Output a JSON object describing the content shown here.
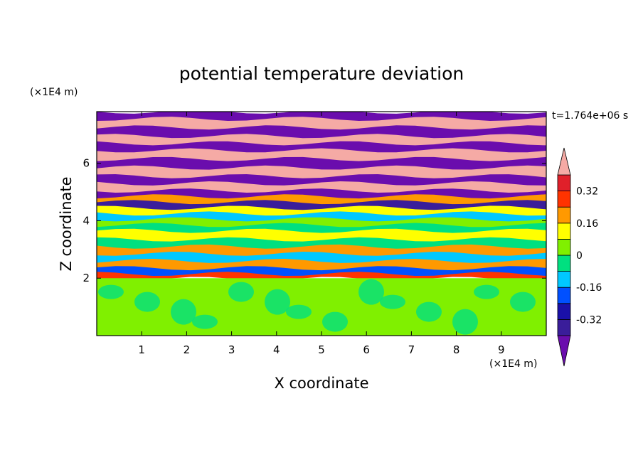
{
  "chart_data": {
    "type": "heatmap",
    "title": "potential temperature deviation",
    "xlabel": "X coordinate",
    "ylabel": "Z coordinate",
    "x_unit": "(×1E4 m)",
    "y_unit": "(×1E4 m)",
    "time_label": "t=1.764e+06 s",
    "xlim": [
      0,
      10
    ],
    "ylim": [
      0,
      7.8
    ],
    "x_ticks": [
      1,
      2,
      3,
      4,
      5,
      6,
      7,
      8,
      9
    ],
    "y_ticks": [
      2,
      4,
      6
    ],
    "grid": false,
    "colorbar": {
      "placement": "right",
      "levels": [
        -0.4,
        -0.32,
        -0.24,
        -0.16,
        -0.08,
        0,
        0.08,
        0.16,
        0.24,
        0.32,
        0.4
      ],
      "colors": [
        "#6a0dad",
        "#3a1d9a",
        "#1a10a8",
        "#0050ff",
        "#00c8ff",
        "#00e080",
        "#80f000",
        "#ffff00",
        "#ff9900",
        "#ff3300",
        "#e0202a",
        "#f5aaa5"
      ],
      "tick_labels": [
        "0.32",
        "0.16",
        "0",
        "-0.16",
        "-0.32"
      ],
      "tick_values": [
        0.32,
        0.16,
        0,
        -0.16,
        -0.32
      ]
    },
    "bands": [
      {
        "z0": 7.55,
        "z1": 7.8,
        "value": -0.5
      },
      {
        "z0": 7.25,
        "z1": 7.55,
        "value": 0.5
      },
      {
        "z0": 6.95,
        "z1": 7.25,
        "value": -0.5
      },
      {
        "z0": 6.7,
        "z1": 6.95,
        "value": 0.5
      },
      {
        "z0": 6.45,
        "z1": 6.7,
        "value": -0.5
      },
      {
        "z0": 6.15,
        "z1": 6.45,
        "value": 0.5
      },
      {
        "z0": 5.85,
        "z1": 6.15,
        "value": -0.5
      },
      {
        "z0": 5.55,
        "z1": 5.85,
        "value": 0.5
      },
      {
        "z0": 5.3,
        "z1": 5.55,
        "value": -0.5
      },
      {
        "z0": 5.05,
        "z1": 5.3,
        "value": 0.5
      },
      {
        "z0": 4.85,
        "z1": 5.05,
        "value": -0.45
      },
      {
        "z0": 4.65,
        "z1": 4.85,
        "value": 0.2
      },
      {
        "z0": 4.45,
        "z1": 4.65,
        "value": -0.35
      },
      {
        "z0": 4.25,
        "z1": 4.45,
        "value": 0.1
      },
      {
        "z0": 4.05,
        "z1": 4.25,
        "value": -0.1
      },
      {
        "z0": 3.85,
        "z1": 4.05,
        "value": 0.05
      },
      {
        "z0": 3.65,
        "z1": 3.85,
        "value": -0.08
      },
      {
        "z0": 3.35,
        "z1": 3.65,
        "value": 0.12
      },
      {
        "z0": 3.1,
        "z1": 3.35,
        "value": -0.05
      },
      {
        "z0": 2.85,
        "z1": 3.1,
        "value": 0.18
      },
      {
        "z0": 2.6,
        "z1": 2.85,
        "value": -0.12
      },
      {
        "z0": 2.35,
        "z1": 2.6,
        "value": 0.22
      },
      {
        "z0": 2.15,
        "z1": 2.35,
        "value": -0.2
      },
      {
        "z0": 2.0,
        "z1": 2.15,
        "value": 0.3
      },
      {
        "z0": 0.0,
        "z1": 2.0,
        "value": 0.05
      }
    ]
  }
}
